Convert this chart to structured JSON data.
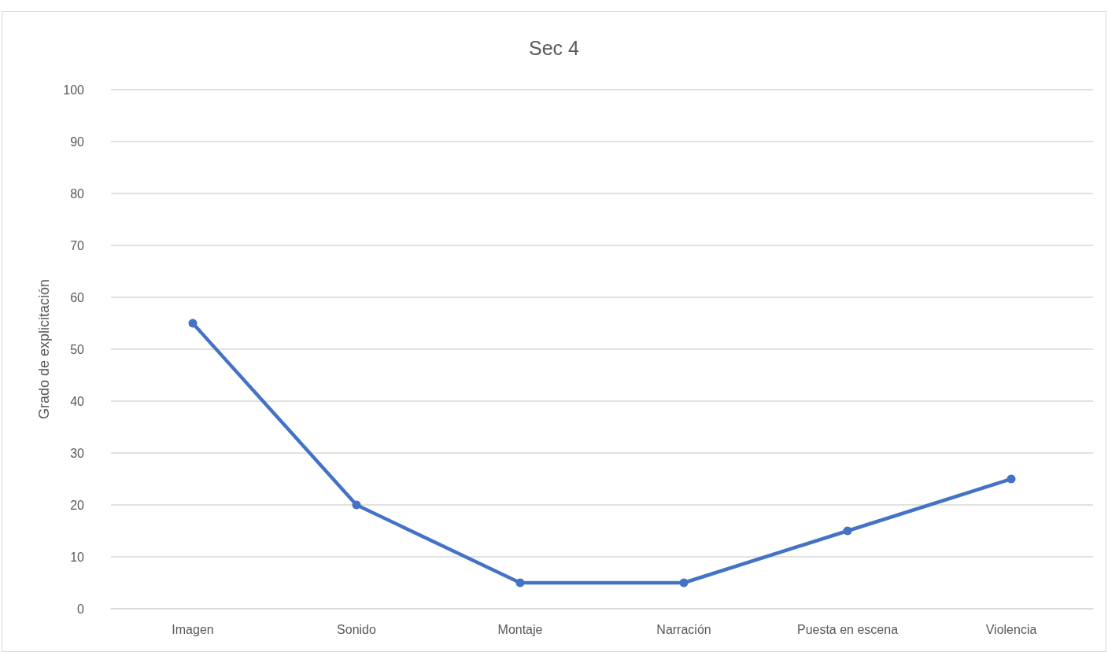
{
  "chart_data": {
    "type": "line",
    "title": "Sec 4",
    "ylabel": "Grado de explicitación",
    "categories": [
      "Imagen",
      "Sonido",
      "Montaje",
      "Narración",
      "Puesta en escena",
      "Violencia"
    ],
    "series": [
      {
        "color": "#4472c4",
        "values": [
          55,
          20,
          5,
          5,
          15,
          25
        ]
      }
    ],
    "ylim": [
      0,
      100
    ],
    "yticks": [
      0,
      10,
      20,
      30,
      40,
      50,
      60,
      70,
      80,
      90,
      100
    ],
    "grid": "y",
    "marker": "circle",
    "line_style": "solid"
  }
}
